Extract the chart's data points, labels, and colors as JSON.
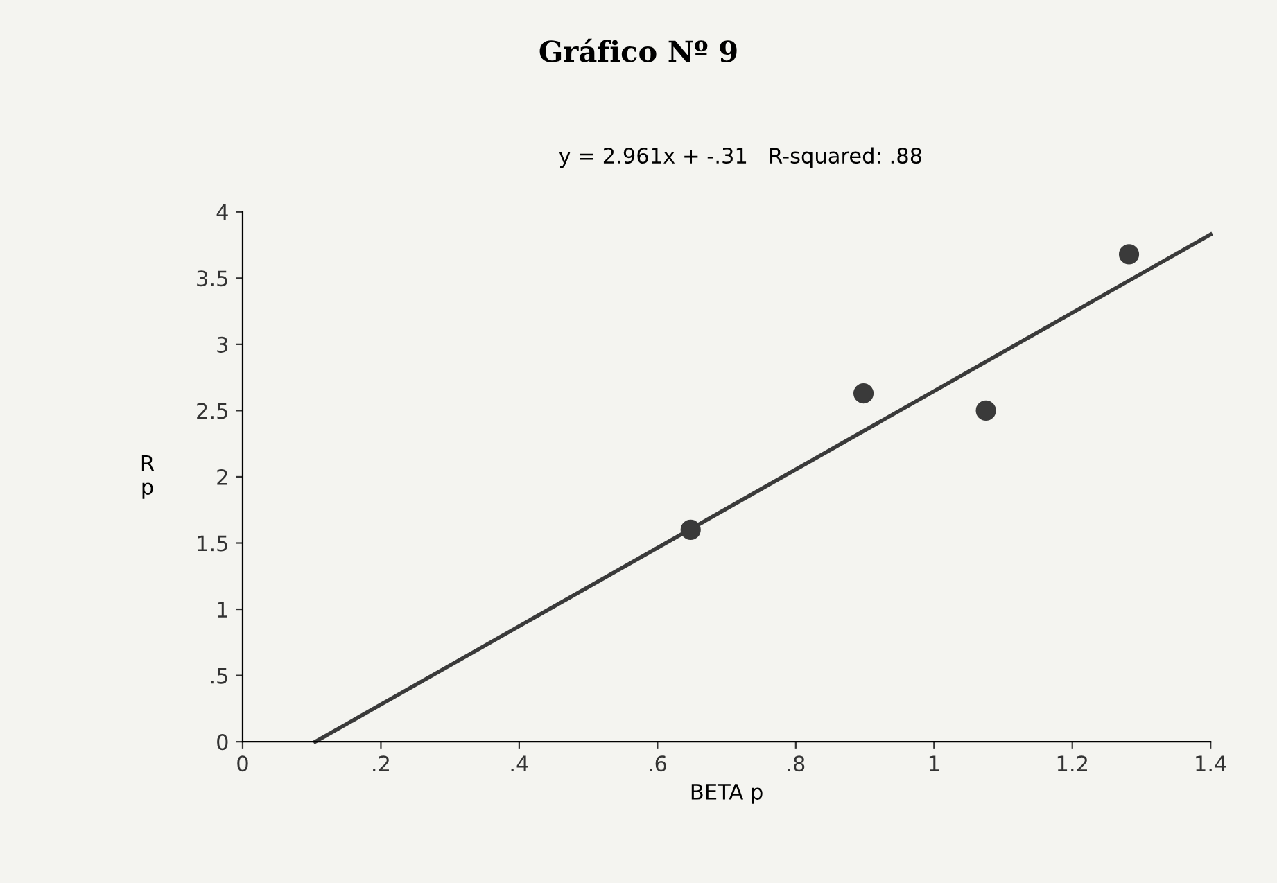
{
  "chart_data": {
    "type": "scatter",
    "title": "Gráfico Nº 9",
    "xlabel": "BETA p",
    "ylabel": "R\np",
    "annotations": [
      "y = 2.961x + -.31   R-squared: .88"
    ],
    "x": [
      0.648,
      0.898,
      1.075,
      1.282
    ],
    "series": [
      {
        "color": "#3a3a3a",
        "marker": "circle",
        "values": [
          1.6,
          2.63,
          2.5,
          3.68
        ]
      },
      {
        "type": "line",
        "color": "#3a3a3a",
        "line_style": "solid",
        "x": [
          0.105,
          1.4
        ],
        "values": [
          0,
          3.83
        ]
      }
    ],
    "xlim": [
      0,
      1.4
    ],
    "ylim": [
      0,
      4
    ],
    "xticks": [
      0,
      {
        "value": 0.2,
        "label": ".2"
      },
      {
        "value": 0.4,
        "label": ".4"
      },
      {
        "value": 0.6,
        "label": ".6"
      },
      {
        "value": 0.8,
        "label": ".8"
      },
      1,
      1.2,
      1.4
    ],
    "yticks": [
      0,
      {
        "value": 0.5,
        "label": ".5"
      },
      1,
      1.5,
      2,
      2.5,
      3,
      3.5,
      4
    ],
    "grid": false,
    "legend": false
  }
}
